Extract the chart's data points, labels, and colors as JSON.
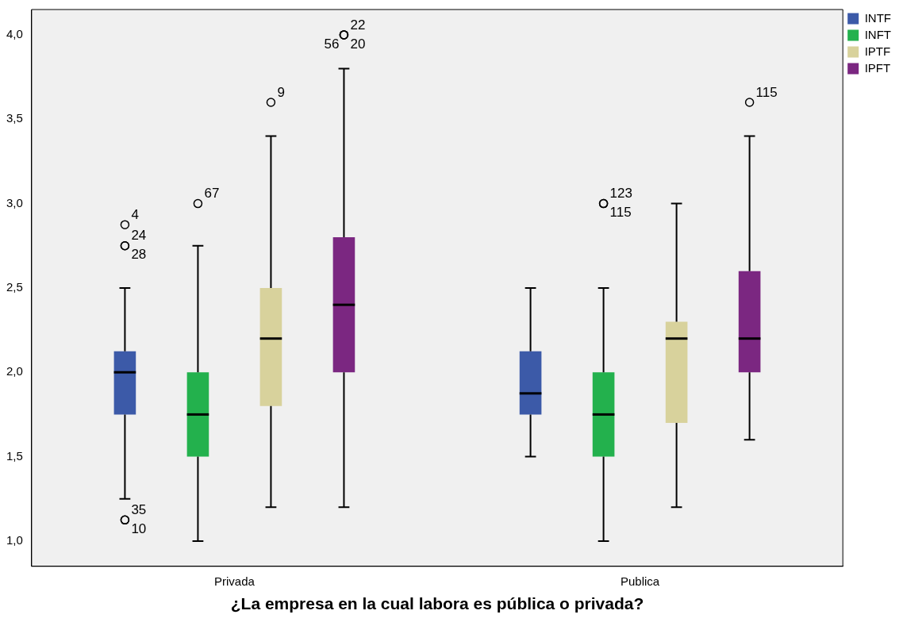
{
  "chart_data": {
    "type": "box",
    "xlabel": "¿La empresa en la cual labora es pública o privada?",
    "categories": [
      "Privada",
      "Publica"
    ],
    "series": [
      {
        "name": "INTF",
        "color": "#3c5aa8",
        "boxes": [
          {
            "low": 1.25,
            "q1": 1.75,
            "median": 2.0,
            "q3": 2.125,
            "high": 2.5,
            "outliers": [
              2.875,
              2.75,
              2.75,
              1.125,
              1.125
            ]
          },
          {
            "low": 1.5,
            "q1": 1.75,
            "median": 1.875,
            "q3": 2.125,
            "high": 2.5
          }
        ]
      },
      {
        "name": "INFT",
        "color": "#23b14d",
        "boxes": [
          {
            "low": 1.0,
            "q1": 1.5,
            "median": 1.75,
            "q3": 2.0,
            "high": 2.75,
            "outliers": [
              3.0
            ]
          },
          {
            "low": 1.0,
            "q1": 1.5,
            "median": 1.75,
            "q3": 2.0,
            "high": 2.5,
            "outliers": [
              3.0,
              3.0
            ]
          }
        ]
      },
      {
        "name": "IPTF",
        "color": "#d8d29c",
        "boxes": [
          {
            "low": 1.2,
            "q1": 1.8,
            "median": 2.2,
            "q3": 2.5,
            "high": 3.4,
            "outliers": [
              3.6
            ]
          },
          {
            "low": 1.2,
            "q1": 1.7,
            "median": 2.2,
            "q3": 2.3,
            "high": 3.0
          }
        ]
      },
      {
        "name": "IPFT",
        "color": "#7b2781",
        "boxes": [
          {
            "low": 1.2,
            "q1": 2.0,
            "median": 2.4,
            "q3": 2.8,
            "high": 3.8,
            "outliers": [
              4.0,
              4.0,
              4.0
            ]
          },
          {
            "low": 1.6,
            "q1": 2.0,
            "median": 2.2,
            "q3": 2.6,
            "high": 3.4,
            "outliers": [
              3.6
            ]
          }
        ]
      }
    ],
    "ylim": [
      0.85,
      4.15
    ],
    "yticks": [
      {
        "value": 1,
        "label": "1,0"
      },
      {
        "value": 1.5,
        "label": "1,5"
      },
      {
        "value": 2,
        "label": "2,0"
      },
      {
        "value": 2.5,
        "label": "2,5"
      },
      {
        "value": 3,
        "label": "3,0"
      },
      {
        "value": 3.5,
        "label": "3,5"
      },
      {
        "value": 4,
        "label": "4,0"
      }
    ],
    "grid": false,
    "legend": "top right",
    "marker": "circle",
    "annotations": [
      "4",
      "24",
      "28",
      "35",
      "10",
      "67",
      "9",
      "22",
      "20",
      "56",
      "123",
      "115",
      "115"
    ]
  }
}
